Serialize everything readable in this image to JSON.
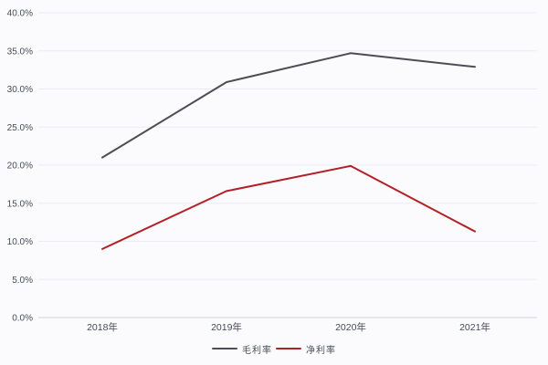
{
  "colors": {
    "background": "#fbfbfd",
    "gridline": "#ebecf1",
    "axis_line": "#d9dbe1",
    "tick_label": "#474c56",
    "gross_margin_line": "#4d4d55",
    "net_margin_line": "#b22028"
  },
  "chart_data": {
    "type": "line",
    "title": "",
    "xlabel": "",
    "ylabel": "",
    "categories": [
      "2018年",
      "2019年",
      "2020年",
      "2021年"
    ],
    "series": [
      {
        "name": "毛利率",
        "color": "#4d4d55",
        "values": [
          21.0,
          30.9,
          34.7,
          32.9
        ]
      },
      {
        "name": "净利率",
        "color": "#b22028",
        "values": [
          9.0,
          16.6,
          19.9,
          11.3
        ]
      }
    ],
    "ylim": [
      0,
      40
    ],
    "ytick_step": 5,
    "ytick_labels": [
      "0.0%",
      "5.0%",
      "10.0%",
      "15.0%",
      "20.0%",
      "25.0%",
      "30.0%",
      "35.0%",
      "40.0%"
    ],
    "grid": true,
    "legend_position": "bottom-center"
  }
}
